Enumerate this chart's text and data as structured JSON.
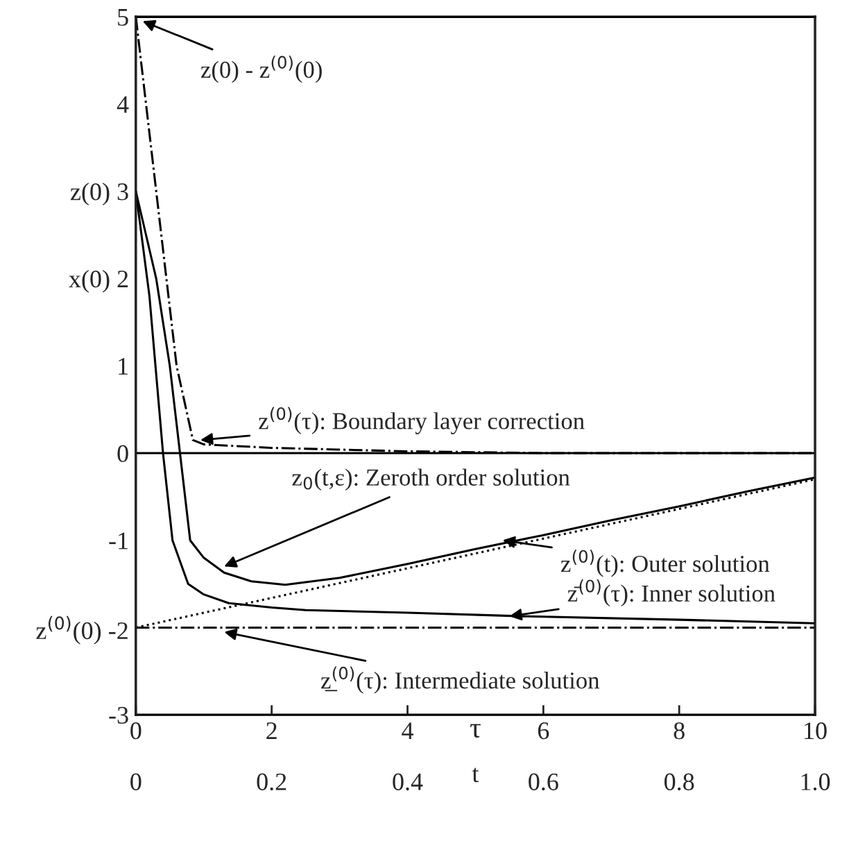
{
  "chart_data": {
    "type": "line",
    "xlabel": "τ",
    "x2label": "t",
    "xlim": [
      0,
      10
    ],
    "xticks": [
      0,
      2,
      4,
      6,
      8,
      10
    ],
    "x2lim": [
      0,
      1
    ],
    "x2ticks": [
      0,
      0.2,
      0.4,
      0.6,
      0.8,
      {
        "value": 1,
        "label": "1.0"
      }
    ],
    "ylim": [
      -3,
      5
    ],
    "yticks": [
      {
        "value": -3,
        "label": "-3"
      },
      {
        "value": -2,
        "label": "z$^{(0)}$(0) -2"
      },
      {
        "value": -1,
        "label": "-1"
      },
      0,
      1,
      {
        "value": 2,
        "label": "x(0) 2"
      },
      {
        "value": 3,
        "label": "z(0) 3"
      },
      4,
      5
    ],
    "grid": false,
    "legend": false,
    "series": [
      {
        "color": "#000000",
        "line_style": "solid",
        "x": [
          0,
          0.3,
          0.5,
          0.65,
          0.8,
          1.0,
          1.3,
          1.7,
          2.2,
          3,
          4,
          5,
          6,
          7,
          8,
          9,
          10
        ],
        "values": [
          3,
          2,
          1,
          0,
          -1,
          -1.2,
          -1.37,
          -1.47,
          -1.51,
          -1.43,
          -1.27,
          -1.1,
          -0.94,
          -0.77,
          -0.61,
          -0.44,
          -0.28
        ]
      },
      {
        "color": "#000000",
        "line_style": "dotted",
        "x": [
          0,
          10
        ],
        "values": [
          -2,
          -0.3
        ]
      },
      {
        "color": "#000000",
        "line_style": "solid",
        "x": [
          0,
          0.2,
          0.4,
          0.54,
          0.77,
          1.0,
          1.37,
          2,
          2.5,
          4,
          5.7,
          8,
          10
        ],
        "values": [
          3,
          1.8,
          0,
          -1,
          -1.5,
          -1.62,
          -1.72,
          -1.77,
          -1.8,
          -1.83,
          -1.87,
          -1.91,
          -1.95
        ]
      },
      {
        "color": "#000000",
        "line_style": "dashdot",
        "x": [
          0,
          0.3,
          0.6,
          0.84,
          1.0,
          1.5,
          2,
          3,
          4,
          5,
          6,
          10
        ],
        "values": [
          5,
          3,
          1,
          0.15,
          0.1,
          0.08,
          0.06,
          0.04,
          0.02,
          0.01,
          0,
          0
        ]
      },
      {
        "color": "#000000",
        "line_style": "dashdot",
        "x": [
          0,
          10
        ],
        "values": [
          -2,
          -2
        ]
      }
    ],
    "ref_lines": [
      {
        "axis": "y",
        "value": 0,
        "color": "#000000",
        "line_style": "solid"
      }
    ],
    "annotations": [
      {
        "text": "z(0) - z$^{(0)}$(0)",
        "x": 0.1,
        "y": 4.95
      },
      {
        "text": "z$^{(0)}$(τ): Boundary layer correction",
        "x": 0.95,
        "y": 0.15
      },
      {
        "text": "z$_{0}$(t,ε): Zeroth order solution",
        "x": 1.3,
        "y": -1.3
      },
      {
        "text": "z$^{(0)}$(t): Outer solution",
        "x": 5.4,
        "y": -1.0
      },
      {
        "text": "z̄$^{(0)}$(τ): Inner solution",
        "x": 5.5,
        "y": -1.87
      },
      {
        "text": "z̲$^{(0)}$(τ): Intermediate solution",
        "x": 1.3,
        "y": -2.05
      }
    ]
  }
}
